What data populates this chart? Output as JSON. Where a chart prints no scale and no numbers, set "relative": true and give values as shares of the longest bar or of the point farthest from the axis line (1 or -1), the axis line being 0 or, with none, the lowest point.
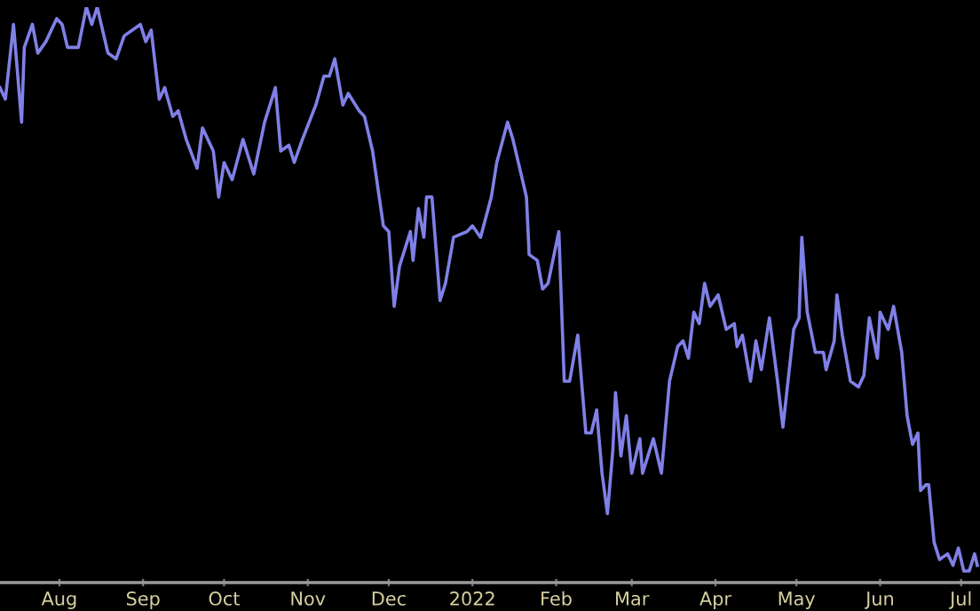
{
  "chart_data": {
    "type": "line",
    "relative": true,
    "grid": false,
    "xlim": [
      "2021-07-10",
      "2022-07-08"
    ],
    "xticks": [
      {
        "value": "2021-08-01",
        "label": "Aug"
      },
      {
        "value": "2021-09-01",
        "label": "Sep"
      },
      {
        "value": "2021-10-01",
        "label": "Oct"
      },
      {
        "value": "2021-11-01",
        "label": "Nov"
      },
      {
        "value": "2021-12-01",
        "label": "Dec"
      },
      {
        "value": "2022-01-01",
        "label": "2022"
      },
      {
        "value": "2022-02-01",
        "label": "Feb"
      },
      {
        "value": "2022-03-01",
        "label": "Mar"
      },
      {
        "value": "2022-04-01",
        "label": "Apr"
      },
      {
        "value": "2022-05-01",
        "label": "May"
      },
      {
        "value": "2022-06-01",
        "label": "Jun"
      },
      {
        "value": "2022-07-01",
        "label": "Jul"
      }
    ],
    "x": [
      "2021-07-10",
      "2021-07-12",
      "2021-07-15",
      "2021-07-18",
      "2021-07-19",
      "2021-07-22",
      "2021-07-24",
      "2021-07-27",
      "2021-07-31",
      "2021-08-02",
      "2021-08-04",
      "2021-08-08",
      "2021-08-11",
      "2021-08-13",
      "2021-08-15",
      "2021-08-19",
      "2021-08-22",
      "2021-08-25",
      "2021-08-31",
      "2021-09-02",
      "2021-09-04",
      "2021-09-07",
      "2021-09-09",
      "2021-09-12",
      "2021-09-14",
      "2021-09-17",
      "2021-09-21",
      "2021-09-23",
      "2021-09-27",
      "2021-09-29",
      "2021-10-01",
      "2021-10-04",
      "2021-10-08",
      "2021-10-12",
      "2021-10-16",
      "2021-10-20",
      "2021-10-22",
      "2021-10-25",
      "2021-10-27",
      "2021-10-30",
      "2021-11-04",
      "2021-11-07",
      "2021-11-09",
      "2021-11-11",
      "2021-11-14",
      "2021-11-16",
      "2021-11-20",
      "2021-11-22",
      "2021-11-25",
      "2021-11-29",
      "2021-12-01",
      "2021-12-03",
      "2021-12-05",
      "2021-12-09",
      "2021-12-10",
      "2021-12-12",
      "2021-12-14",
      "2021-12-15",
      "2021-12-17",
      "2021-12-20",
      "2021-12-22",
      "2021-12-25",
      "2021-12-30",
      "2022-01-01",
      "2022-01-04",
      "2022-01-08",
      "2022-01-10",
      "2022-01-14",
      "2022-01-16",
      "2022-01-19",
      "2022-01-21",
      "2022-01-22",
      "2022-01-25",
      "2022-01-27",
      "2022-01-29",
      "2022-02-02",
      "2022-02-04",
      "2022-02-06",
      "2022-02-09",
      "2022-02-12",
      "2022-02-14",
      "2022-02-16",
      "2022-02-18",
      "2022-02-20",
      "2022-02-22",
      "2022-02-23",
      "2022-02-25",
      "2022-02-27",
      "2022-03-01",
      "2022-03-04",
      "2022-03-05",
      "2022-03-09",
      "2022-03-12",
      "2022-03-15",
      "2022-03-18",
      "2022-03-20",
      "2022-03-22",
      "2022-03-24",
      "2022-03-26",
      "2022-03-28",
      "2022-03-30",
      "2022-04-02",
      "2022-04-05",
      "2022-04-08",
      "2022-04-09",
      "2022-04-11",
      "2022-04-14",
      "2022-04-16",
      "2022-04-18",
      "2022-04-21",
      "2022-04-24",
      "2022-04-26",
      "2022-04-30",
      "2022-05-02",
      "2022-05-03",
      "2022-05-05",
      "2022-05-08",
      "2022-05-11",
      "2022-05-12",
      "2022-05-15",
      "2022-05-16",
      "2022-05-18",
      "2022-05-21",
      "2022-05-24",
      "2022-05-26",
      "2022-05-28",
      "2022-05-31",
      "2022-06-01",
      "2022-06-04",
      "2022-06-06",
      "2022-06-09",
      "2022-06-11",
      "2022-06-13",
      "2022-06-15",
      "2022-06-16",
      "2022-06-18",
      "2022-06-19",
      "2022-06-21",
      "2022-06-23",
      "2022-06-26",
      "2022-06-28",
      "2022-06-30",
      "2022-07-02",
      "2022-07-04",
      "2022-07-06",
      "2022-07-07"
    ],
    "series": [
      {
        "color": "#8080e8",
        "values": [
          0.86,
          0.84,
          0.97,
          0.8,
          0.93,
          0.97,
          0.92,
          0.94,
          0.98,
          0.97,
          0.93,
          0.93,
          1.0,
          0.97,
          1.0,
          0.92,
          0.91,
          0.95,
          0.97,
          0.94,
          0.96,
          0.84,
          0.86,
          0.81,
          0.82,
          0.77,
          0.72,
          0.79,
          0.75,
          0.67,
          0.73,
          0.7,
          0.77,
          0.71,
          0.8,
          0.86,
          0.75,
          0.76,
          0.73,
          0.77,
          0.83,
          0.88,
          0.88,
          0.91,
          0.83,
          0.85,
          0.82,
          0.81,
          0.75,
          0.62,
          0.61,
          0.48,
          0.55,
          0.61,
          0.56,
          0.65,
          0.6,
          0.67,
          0.67,
          0.49,
          0.52,
          0.6,
          0.61,
          0.62,
          0.6,
          0.67,
          0.73,
          0.8,
          0.77,
          0.71,
          0.67,
          0.57,
          0.56,
          0.51,
          0.52,
          0.61,
          0.35,
          0.35,
          0.43,
          0.26,
          0.26,
          0.3,
          0.19,
          0.12,
          0.23,
          0.33,
          0.22,
          0.29,
          0.19,
          0.25,
          0.19,
          0.25,
          0.19,
          0.35,
          0.41,
          0.42,
          0.39,
          0.47,
          0.45,
          0.52,
          0.48,
          0.5,
          0.44,
          0.45,
          0.41,
          0.43,
          0.35,
          0.42,
          0.37,
          0.46,
          0.35,
          0.27,
          0.44,
          0.46,
          0.6,
          0.47,
          0.4,
          0.4,
          0.37,
          0.42,
          0.5,
          0.43,
          0.35,
          0.34,
          0.36,
          0.46,
          0.39,
          0.47,
          0.44,
          0.48,
          0.4,
          0.29,
          0.24,
          0.26,
          0.16,
          0.17,
          0.17,
          0.07,
          0.04,
          0.05,
          0.03,
          0.06,
          0.02,
          0.02,
          0.05,
          0.03
        ]
      }
    ]
  }
}
